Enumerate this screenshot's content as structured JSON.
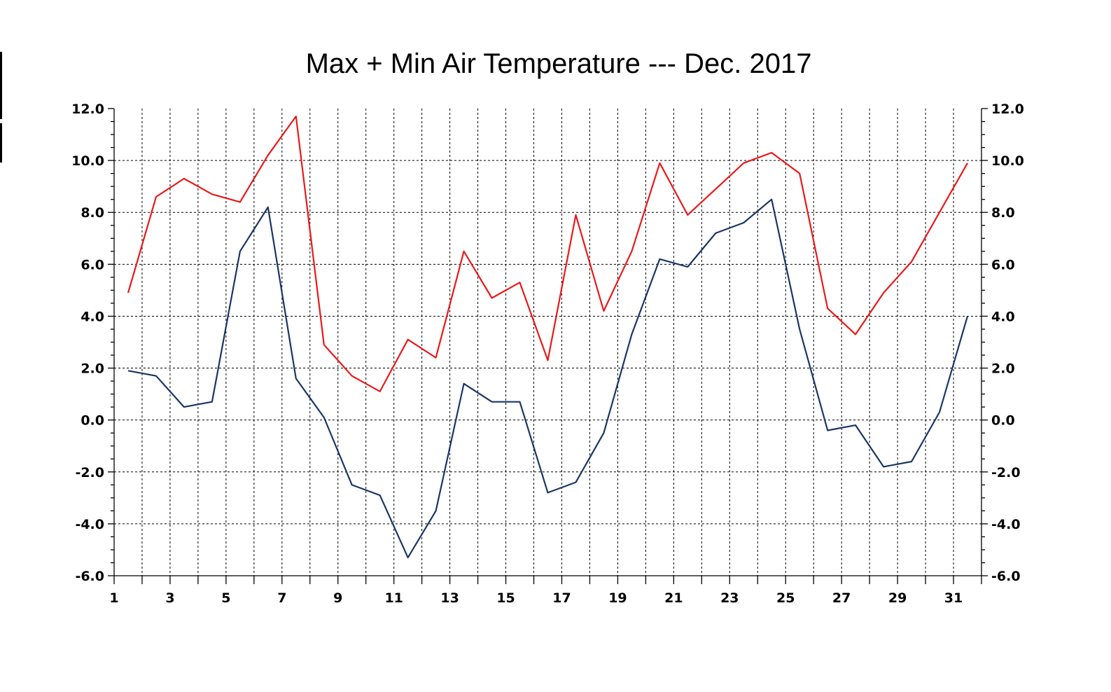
{
  "chart_data": {
    "type": "line",
    "title": "Max + Min Air Temperature --- Dec. 2017",
    "xlabel": "",
    "ylabel": "",
    "xlim": [
      1,
      32
    ],
    "ylim": [
      -6,
      12
    ],
    "x_ticks": [
      1,
      3,
      5,
      7,
      9,
      11,
      13,
      15,
      17,
      19,
      21,
      23,
      25,
      27,
      29,
      31
    ],
    "y_ticks": [
      "-6.0",
      "-4.0",
      "-2.0",
      "0.0",
      "2.0",
      "4.0",
      "6.0",
      "8.0",
      "10.0",
      "12.0"
    ],
    "grid": true,
    "legend": "none",
    "series": [
      {
        "color": "#e8191a",
        "x": [
          1.5,
          2.5,
          3.5,
          4.5,
          5.5,
          6.5,
          7.5,
          8.5,
          9.5,
          10.5,
          11.5,
          12.5,
          13.5,
          14.5,
          15.5,
          16.5,
          17.5,
          18.5,
          19.5,
          20.5,
          21.5,
          22.5,
          23.5,
          24.5,
          25.5,
          26.5,
          27.5,
          28.5,
          29.5,
          30.5,
          31.5
        ],
        "values": [
          4.9,
          8.6,
          9.3,
          8.7,
          8.4,
          10.2,
          11.7,
          2.9,
          1.7,
          1.1,
          3.1,
          2.4,
          6.5,
          4.7,
          5.3,
          2.3,
          7.9,
          4.2,
          6.5,
          9.9,
          7.9,
          8.9,
          9.9,
          10.3,
          9.5,
          4.3,
          3.3,
          4.9,
          6.1,
          8.0,
          9.9
        ]
      },
      {
        "color": "#1a3665",
        "x": [
          1.5,
          2.5,
          3.5,
          4.5,
          5.5,
          6.5,
          7.5,
          8.5,
          9.5,
          10.5,
          11.5,
          12.5,
          13.5,
          14.5,
          15.5,
          16.5,
          17.5,
          18.5,
          19.5,
          20.5,
          21.5,
          22.5,
          23.5,
          24.5,
          25.5,
          26.5,
          27.5,
          28.5,
          29.5,
          30.5,
          31.5
        ],
        "values": [
          1.9,
          1.7,
          0.5,
          0.7,
          6.5,
          8.2,
          1.6,
          0.1,
          -2.5,
          -2.9,
          -5.3,
          -3.5,
          1.4,
          0.7,
          0.7,
          -2.8,
          -2.4,
          -0.5,
          3.3,
          6.2,
          5.9,
          7.2,
          7.6,
          8.5,
          3.5,
          -0.4,
          -0.2,
          -1.8,
          -1.6,
          0.3,
          4.0
        ]
      }
    ]
  }
}
